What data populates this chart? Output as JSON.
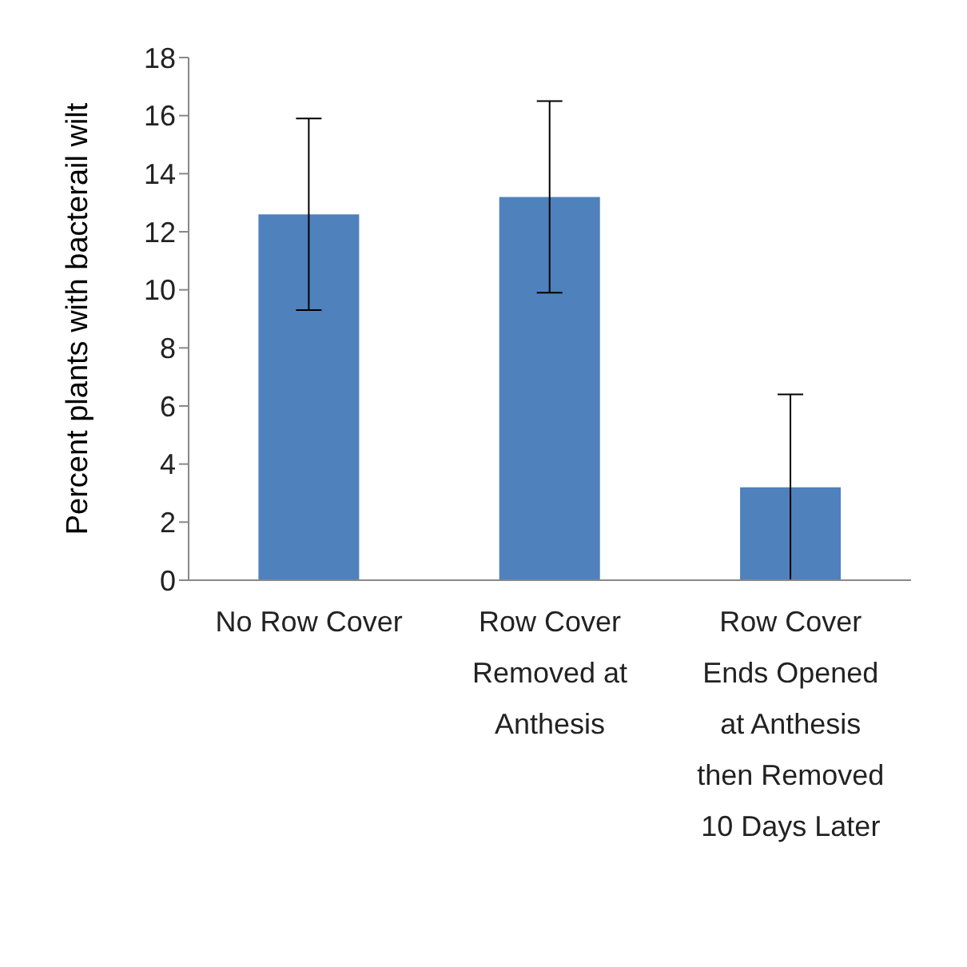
{
  "chart_data": {
    "type": "bar",
    "ylabel": "Percent plants with bacterail wilt",
    "categories": [
      "No Row Cover",
      "Row Cover Removed at Anthesis",
      "Row Cover Ends Opened at Anthesis then Removed 10 Days Later"
    ],
    "values": [
      12.6,
      13.2,
      3.2
    ],
    "errors": [
      3.3,
      3.3,
      3.2
    ],
    "color": "#4f81bd",
    "ylim": [
      0,
      18
    ],
    "yticks": [
      0,
      2,
      4,
      6,
      8,
      10,
      12,
      14,
      16,
      18
    ],
    "grid": false,
    "legend": false
  }
}
